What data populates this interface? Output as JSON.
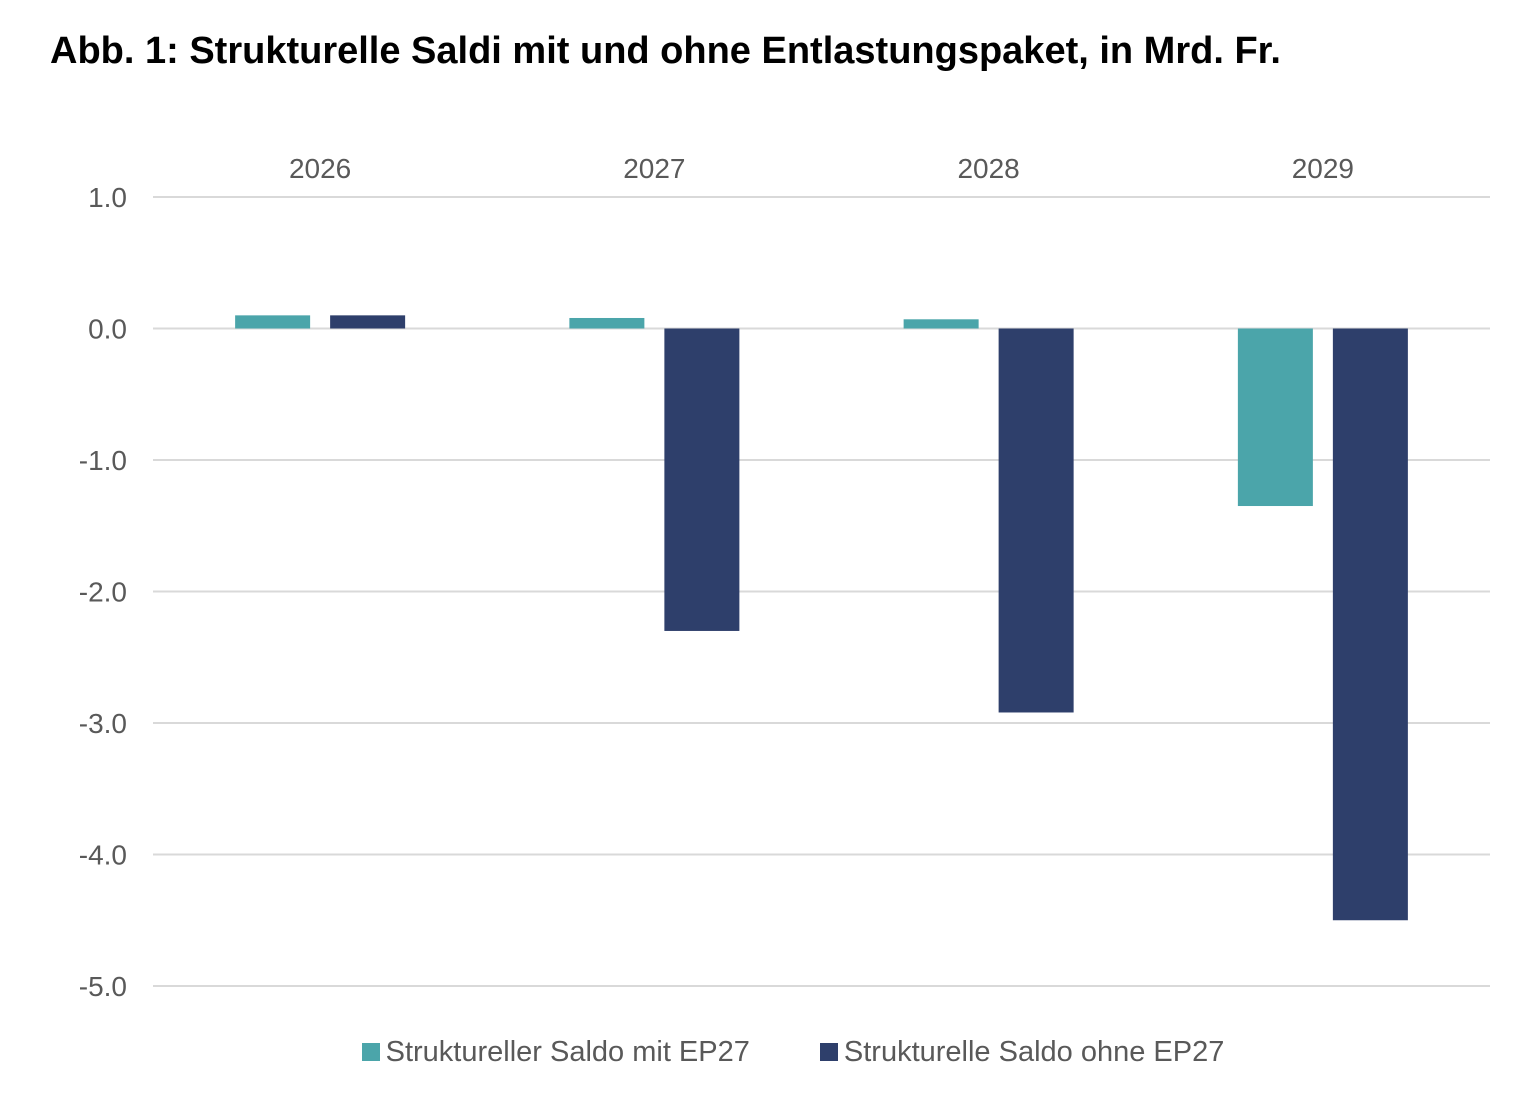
{
  "chart_data": {
    "type": "bar",
    "title": "Abb. 1: Strukturelle Saldi mit und ohne Entlastungspaket, in Mrd. Fr.",
    "categories": [
      "2026",
      "2027",
      "2028",
      "2029"
    ],
    "category_axis_position": "top",
    "series": [
      {
        "name": "Struktureller Saldo mit EP27",
        "color": "#4BA5AA",
        "values": [
          0.1,
          0.08,
          0.07,
          -1.35
        ]
      },
      {
        "name": "Strukturelle Saldo ohne EP27",
        "color": "#2E3F6B",
        "values": [
          0.1,
          -2.3,
          -2.92,
          -4.5
        ]
      }
    ],
    "y_ticks": [
      "1.0",
      "0.0",
      "-1.0",
      "-2.0",
      "-3.0",
      "-4.0",
      "-5.0"
    ],
    "ylim": [
      -5,
      1
    ],
    "grid": true,
    "legend_position": "bottom-center"
  }
}
